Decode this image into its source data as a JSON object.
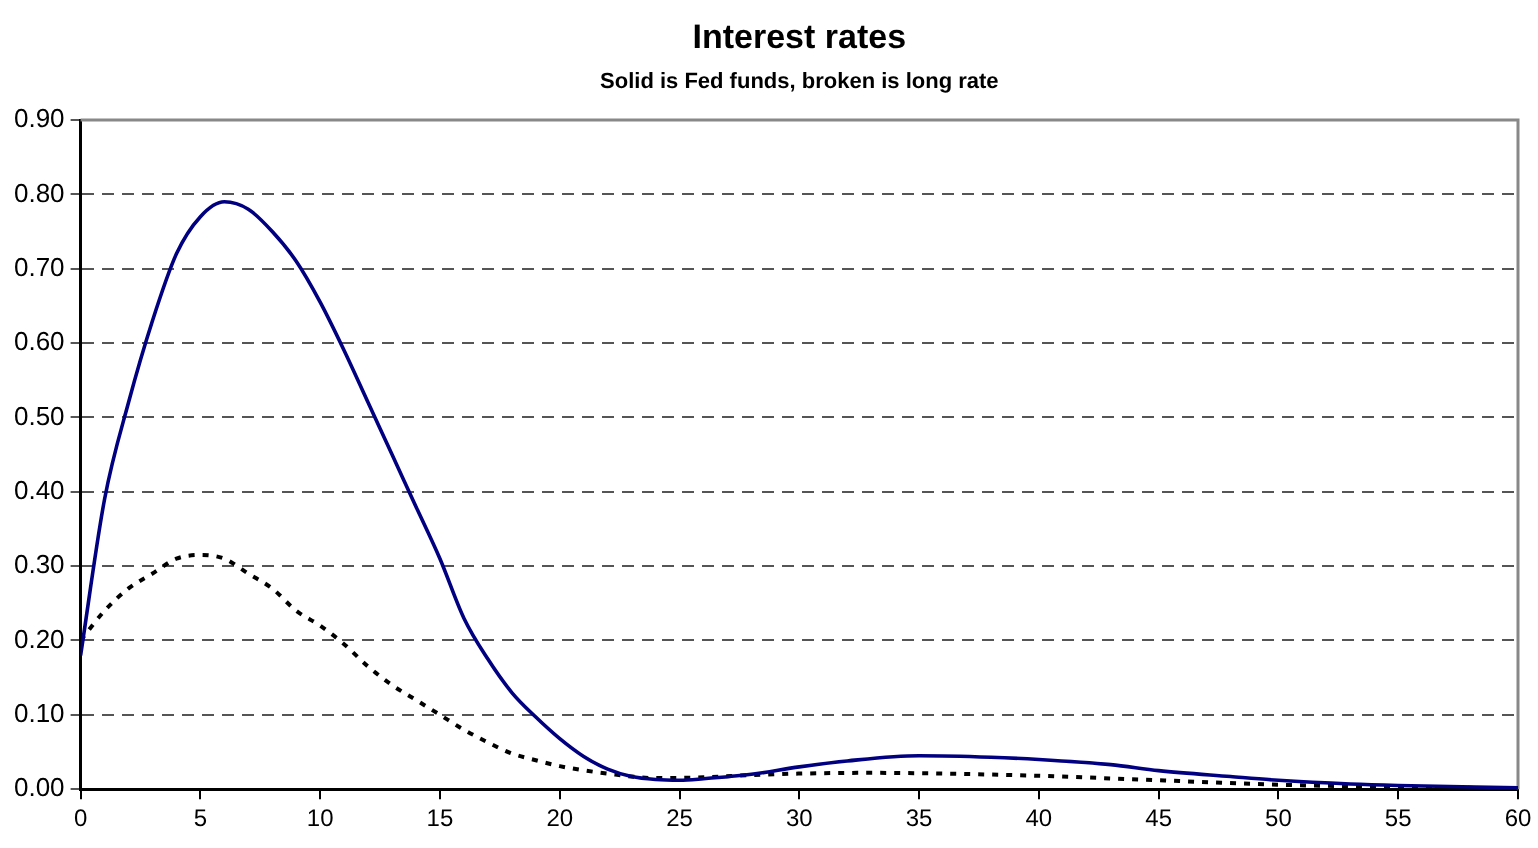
{
  "chart_data": {
    "type": "line",
    "title": "Interest rates",
    "subtitle": "Solid is Fed funds, broken is long rate",
    "xlim": [
      0,
      60
    ],
    "xticks": [
      0,
      5,
      10,
      15,
      20,
      25,
      30,
      35,
      40,
      45,
      50,
      55,
      60
    ],
    "ylim": [
      0,
      0.9
    ],
    "yticks": [
      {
        "value": 0,
        "label": "0.00"
      },
      {
        "value": 0.1,
        "label": "0.10"
      },
      {
        "value": 0.2,
        "label": "0.20"
      },
      {
        "value": 0.3,
        "label": "0.30"
      },
      {
        "value": 0.4,
        "label": "0.40"
      },
      {
        "value": 0.5,
        "label": "0.50"
      },
      {
        "value": 0.6,
        "label": "0.60"
      },
      {
        "value": 0.7,
        "label": "0.70"
      },
      {
        "value": 0.8,
        "label": "0.80"
      },
      {
        "value": 0.9,
        "label": "0.90"
      }
    ],
    "grid": "y",
    "legend": false,
    "marker": "none",
    "series": [
      {
        "color": "#000080",
        "line_style": "solid",
        "x": [
          0,
          1,
          2,
          3,
          4,
          5,
          6,
          7,
          8,
          9,
          10,
          11,
          12,
          13,
          14,
          15,
          16,
          17,
          18,
          19,
          20,
          21,
          22,
          23,
          24,
          25,
          26,
          28,
          30,
          32,
          35,
          38,
          40,
          43,
          45,
          48,
          50,
          53,
          55,
          60
        ],
        "values": [
          0.18,
          0.39,
          0.52,
          0.63,
          0.72,
          0.77,
          0.79,
          0.78,
          0.75,
          0.71,
          0.655,
          0.59,
          0.52,
          0.45,
          0.38,
          0.31,
          0.23,
          0.175,
          0.13,
          0.097,
          0.068,
          0.044,
          0.027,
          0.017,
          0.013,
          0.012,
          0.014,
          0.02,
          0.03,
          0.038,
          0.045,
          0.043,
          0.04,
          0.033,
          0.025,
          0.017,
          0.012,
          0.007,
          0.005,
          0.002
        ]
      },
      {
        "color": "#000000",
        "line_style": "dotted",
        "x": [
          0,
          1,
          2,
          3,
          4,
          5,
          6,
          7,
          8,
          9,
          10,
          11,
          12,
          13,
          14,
          15,
          16,
          17,
          18,
          19,
          20,
          22,
          24,
          26,
          28,
          30,
          33,
          36,
          40,
          45,
          50,
          55,
          60
        ],
        "values": [
          0.2,
          0.24,
          0.27,
          0.29,
          0.31,
          0.315,
          0.31,
          0.29,
          0.27,
          0.24,
          0.22,
          0.195,
          0.165,
          0.14,
          0.12,
          0.1,
          0.08,
          0.063,
          0.048,
          0.039,
          0.031,
          0.021,
          0.015,
          0.016,
          0.019,
          0.021,
          0.022,
          0.021,
          0.018,
          0.012,
          0.006,
          0.003,
          0.001
        ]
      }
    ]
  }
}
